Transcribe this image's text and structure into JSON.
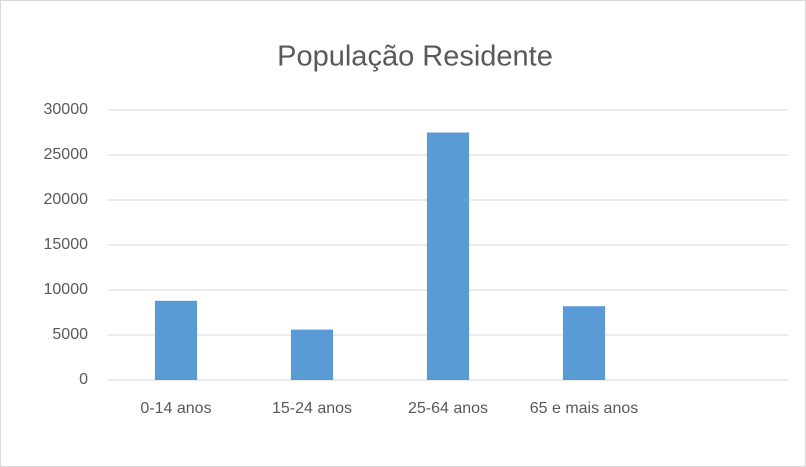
{
  "chart_data": {
    "type": "bar",
    "title": "População Residente",
    "categories": [
      "0-14 anos",
      "15-24 anos",
      "25-64 anos",
      "65 e mais anos",
      null
    ],
    "values": [
      8800,
      5600,
      27500,
      8200,
      null
    ],
    "color": "#5b9bd5",
    "ylim": [
      0,
      30000
    ],
    "yticks": [
      0,
      5000,
      10000,
      15000,
      20000,
      25000,
      30000
    ],
    "grid": true
  }
}
